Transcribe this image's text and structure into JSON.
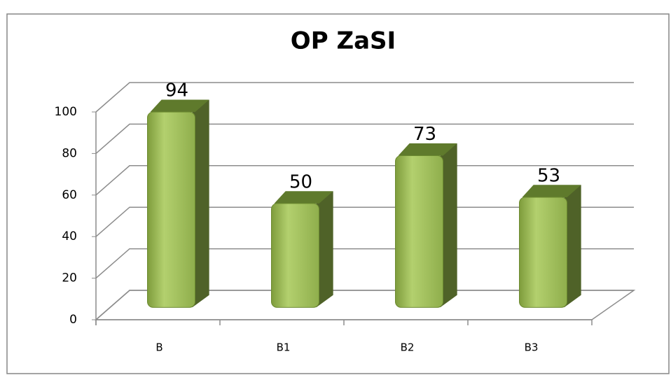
{
  "chart_data": {
    "type": "bar3d",
    "title": "OP ZaSI",
    "categories": [
      "B",
      "B1",
      "B2",
      "B3"
    ],
    "values": [
      94,
      50,
      73,
      53
    ],
    "color": "#9bbb59",
    "ylim": [
      0,
      100
    ],
    "yticks": [
      0,
      20,
      40,
      60,
      80,
      100
    ],
    "grid": true
  }
}
